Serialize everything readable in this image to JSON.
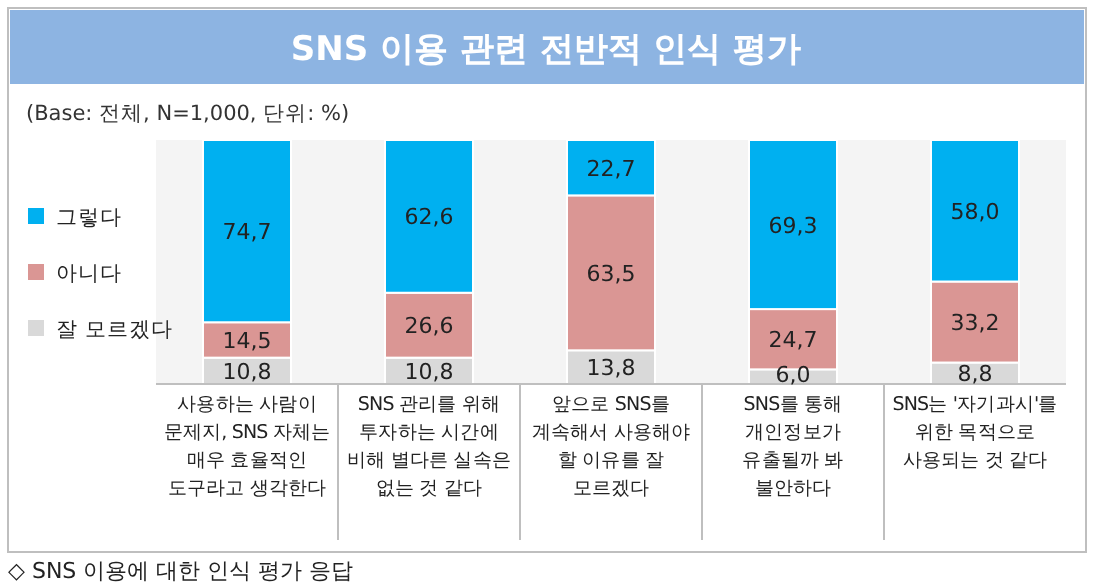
{
  "chart_data": {
    "type": "bar",
    "stacked": true,
    "title": "SNS 이용 관련 전반적 인식 평가",
    "subtitle": "(Base: 전체, N=1,000, 단위: %)",
    "categories": [
      "사용하는 사람이 문제지, SNS 자체는 매우 효율적인 도구라고 생각한다",
      "SNS 관리를 위해 투자하는 시간에 비해 별다른 실속은 없는 것 같다",
      "앞으로 SNS를 계속해서 사용해야 할 이유를 잘 모르겠다",
      "SNS를 통해 개인정보가 유출될까 봐 불안하다",
      "SNS는 '자기과시'를 위한 목적으로 사용되는 것 같다"
    ],
    "series": [
      {
        "name": "잘 모르겠다",
        "color": "#d9d9d9",
        "values": [
          10.8,
          10.8,
          13.8,
          6.0,
          8.8
        ],
        "value_labels": [
          "10,8",
          "10,8",
          "13,8",
          "6,0",
          "8,8"
        ]
      },
      {
        "name": "아니다",
        "color": "#da9694",
        "values": [
          14.5,
          26.6,
          63.5,
          24.7,
          33.2
        ],
        "value_labels": [
          "14,5",
          "26,6",
          "63,5",
          "24,7",
          "33,2"
        ]
      },
      {
        "name": "그렇다",
        "color": "#00b0f0",
        "values": [
          74.7,
          62.6,
          22.7,
          69.3,
          58.0
        ],
        "value_labels": [
          "74,7",
          "62,6",
          "22,7",
          "69,3",
          "58,0"
        ]
      }
    ],
    "ylim": [
      0,
      100
    ],
    "legend": "left",
    "annotations": [
      "◇ SNS 이용에 대한 인식 평가 응답"
    ]
  }
}
